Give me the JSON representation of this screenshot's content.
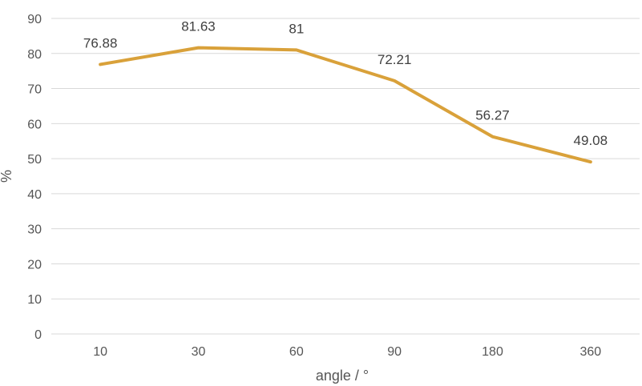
{
  "chart_data": {
    "type": "line",
    "categories": [
      "10",
      "30",
      "60",
      "90",
      "180",
      "360"
    ],
    "series": [
      {
        "values": [
          76.88,
          81.63,
          81,
          72.21,
          56.27,
          49.08
        ],
        "data_labels": [
          "76.88",
          "81.63",
          "81",
          "72.21",
          "56.27",
          "49.08"
        ],
        "color": "#d9a13a"
      }
    ],
    "title": "",
    "xlabel": "angle / °",
    "ylabel": "%",
    "ylim": [
      0,
      90
    ],
    "yticks": [
      0,
      10,
      20,
      30,
      40,
      50,
      60,
      70,
      80,
      90
    ],
    "ytick_labels": [
      "0",
      "10",
      "20",
      "30",
      "40",
      "50",
      "60",
      "70",
      "80",
      "90"
    ],
    "grid": true,
    "legend": "none",
    "colors": {
      "grid": "#d9d9d9",
      "text": "#555555",
      "label_text": "#404040"
    }
  }
}
